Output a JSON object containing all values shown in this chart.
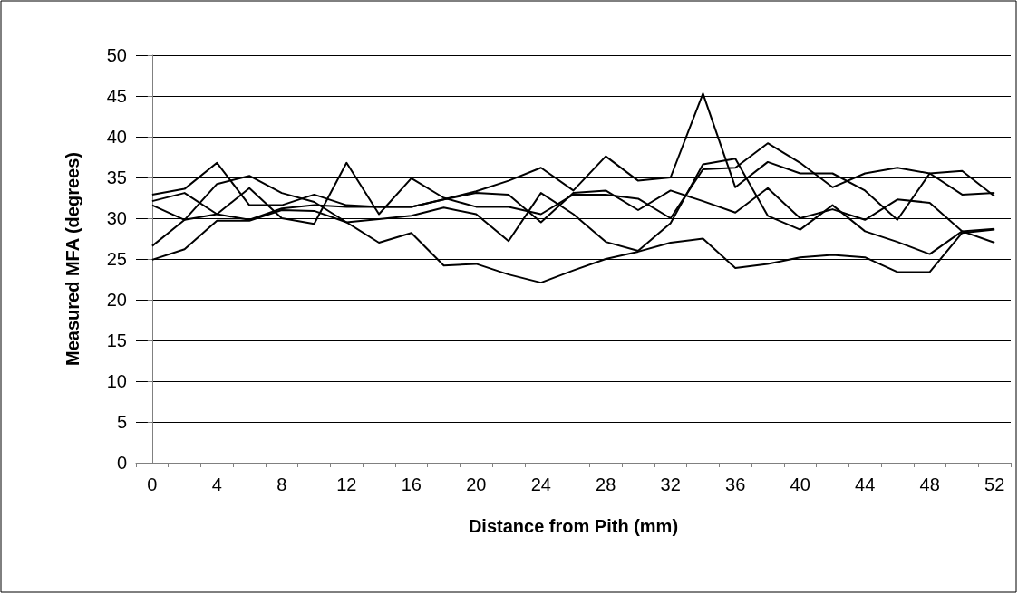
{
  "chart_data": {
    "type": "line",
    "xlabel": "Distance from Pith (mm)",
    "ylabel": "Measured MFA (degrees)",
    "x": [
      0,
      2,
      4,
      6,
      8,
      10,
      12,
      14,
      16,
      18,
      20,
      22,
      24,
      26,
      28,
      30,
      32,
      34,
      36,
      38,
      40,
      42,
      44,
      46,
      48,
      50,
      52
    ],
    "xlim": [
      -1,
      53
    ],
    "xticks": [
      {
        "value": -1,
        "label": null
      },
      0,
      {
        "value": 1,
        "label": null
      },
      {
        "value": 3,
        "label": null
      },
      4,
      {
        "value": 5,
        "label": null
      },
      {
        "value": 7,
        "label": null
      },
      8,
      {
        "value": 9,
        "label": null
      },
      {
        "value": 11,
        "label": null
      },
      12,
      {
        "value": 13,
        "label": null
      },
      {
        "value": 15,
        "label": null
      },
      16,
      {
        "value": 17,
        "label": null
      },
      {
        "value": 19,
        "label": null
      },
      20,
      {
        "value": 21,
        "label": null
      },
      {
        "value": 23,
        "label": null
      },
      24,
      {
        "value": 25,
        "label": null
      },
      {
        "value": 27,
        "label": null
      },
      28,
      {
        "value": 29,
        "label": null
      },
      {
        "value": 31,
        "label": null
      },
      32,
      {
        "value": 33,
        "label": null
      },
      {
        "value": 35,
        "label": null
      },
      36,
      {
        "value": 37,
        "label": null
      },
      {
        "value": 39,
        "label": null
      },
      40,
      {
        "value": 41,
        "label": null
      },
      {
        "value": 43,
        "label": null
      },
      44,
      {
        "value": 45,
        "label": null
      },
      {
        "value": 47,
        "label": null
      },
      48,
      {
        "value": 49,
        "label": null
      },
      {
        "value": 51,
        "label": null
      },
      52,
      {
        "value": 53,
        "label": null
      }
    ],
    "series": [
      {
        "color": "#000000",
        "values": [
          24.9,
          26.2,
          29.7,
          29.7,
          31.0,
          30.9,
          29.5,
          27.0,
          28.2,
          24.2,
          24.4,
          23.1,
          22.1,
          23.6,
          25.0,
          25.9,
          27.0,
          27.5,
          23.9,
          24.4,
          25.2,
          25.5,
          25.2,
          23.4,
          23.4,
          28.2,
          28.6
        ]
      },
      {
        "color": "#000000",
        "values": [
          26.6,
          29.8,
          34.2,
          35.2,
          33.1,
          32.0,
          29.5,
          29.9,
          30.3,
          31.3,
          30.5,
          27.2,
          33.1,
          30.5,
          27.1,
          26.0,
          29.4,
          36.6,
          37.3,
          30.3,
          28.6,
          31.6,
          28.4,
          27.1,
          25.6,
          28.4,
          28.7
        ]
      },
      {
        "color": "#000000",
        "values": [
          32.9,
          33.6,
          36.8,
          31.6,
          31.6,
          32.9,
          31.6,
          31.4,
          31.4,
          32.3,
          33.1,
          32.9,
          29.5,
          33.1,
          33.4,
          31.0,
          33.4,
          32.1,
          30.7,
          33.7,
          30.0,
          31.1,
          29.8,
          32.3,
          31.9,
          28.4,
          27.0
        ]
      },
      {
        "color": "#000000",
        "values": [
          31.6,
          29.8,
          30.5,
          33.7,
          30.0,
          29.3,
          36.8,
          30.5,
          34.9,
          32.5,
          31.4,
          31.4,
          30.5,
          32.9,
          32.9,
          32.4,
          30.0,
          36.0,
          36.2,
          39.2,
          36.8,
          33.8,
          35.5,
          36.2,
          35.5,
          32.9,
          33.1
        ]
      },
      {
        "color": "#000000",
        "values": [
          32.1,
          33.1,
          30.5,
          29.8,
          31.2,
          31.6,
          31.4,
          31.4,
          31.4,
          32.3,
          33.3,
          34.6,
          36.2,
          33.4,
          37.6,
          34.6,
          35.0,
          45.3,
          33.8,
          36.9,
          35.5,
          35.5,
          33.4,
          29.8,
          35.5,
          35.8,
          32.7
        ]
      }
    ],
    "ylim": [
      0,
      50
    ],
    "yticks": [
      0,
      5,
      10,
      15,
      20,
      25,
      30,
      35,
      40,
      45,
      50
    ],
    "grid": "y",
    "marker": "none",
    "line_style": "solid"
  }
}
